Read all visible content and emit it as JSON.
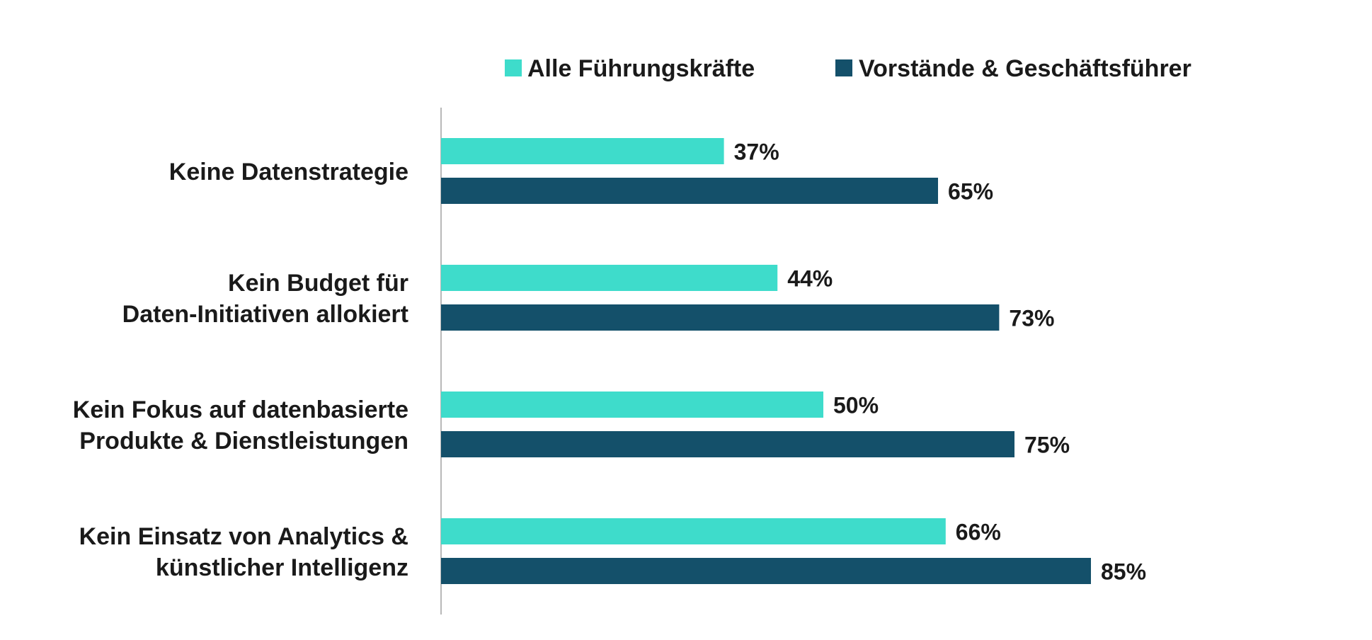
{
  "chart_data": {
    "type": "bar",
    "orientation": "horizontal",
    "categories": [
      [
        "Keine Datenstrategie"
      ],
      [
        "Kein Budget für",
        "Daten-Initiativen allokiert"
      ],
      [
        "Kein Fokus auf datenbasierte",
        "Produkte & Dienstleistungen"
      ],
      [
        "Kein Einsatz von Analytics &",
        "künstlicher Intelligenz"
      ]
    ],
    "series": [
      {
        "name": "Alle Führungskräfte",
        "values": [
          37,
          44,
          50,
          66
        ],
        "labels": [
          "37%",
          "44%",
          "50%",
          "66%"
        ],
        "color": "#3edccb"
      },
      {
        "name": "Vorstände & Geschäftsführer",
        "values": [
          65,
          73,
          75,
          85
        ],
        "labels": [
          "65%",
          "73%",
          "75%",
          "85%"
        ],
        "color": "#14506a"
      }
    ],
    "xlim": [
      0,
      100
    ],
    "grid": false,
    "legend_position": "top"
  }
}
